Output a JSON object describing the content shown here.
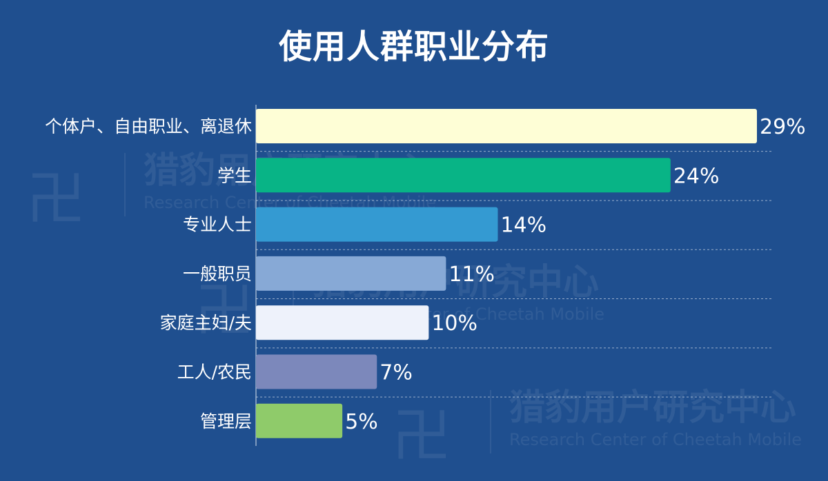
{
  "title": "使用人群职业分布",
  "watermark": {
    "cn": "猎豹用户研究中心",
    "en": "Research Center of Cheetah Mobile"
  },
  "chart_data": {
    "type": "bar",
    "orientation": "horizontal",
    "title": "使用人群职业分布",
    "categories": [
      "个体户、自由职业、离退休",
      "学生",
      "专业人士",
      "一般职员",
      "家庭主妇/夫",
      "工人/农民",
      "管理层"
    ],
    "values": [
      29,
      24,
      14,
      11,
      10,
      7,
      5
    ],
    "value_labels": [
      "29%",
      "24%",
      "14%",
      "11%",
      "10%",
      "7%",
      "5%"
    ],
    "unit": "%",
    "colors": [
      "#fefed6",
      "#08b486",
      "#349ad2",
      "#87a9d6",
      "#eef2fb",
      "#7c88bb",
      "#8fcb6a"
    ],
    "grid": "horizontal-dashed",
    "xlim": [
      0,
      29
    ]
  }
}
